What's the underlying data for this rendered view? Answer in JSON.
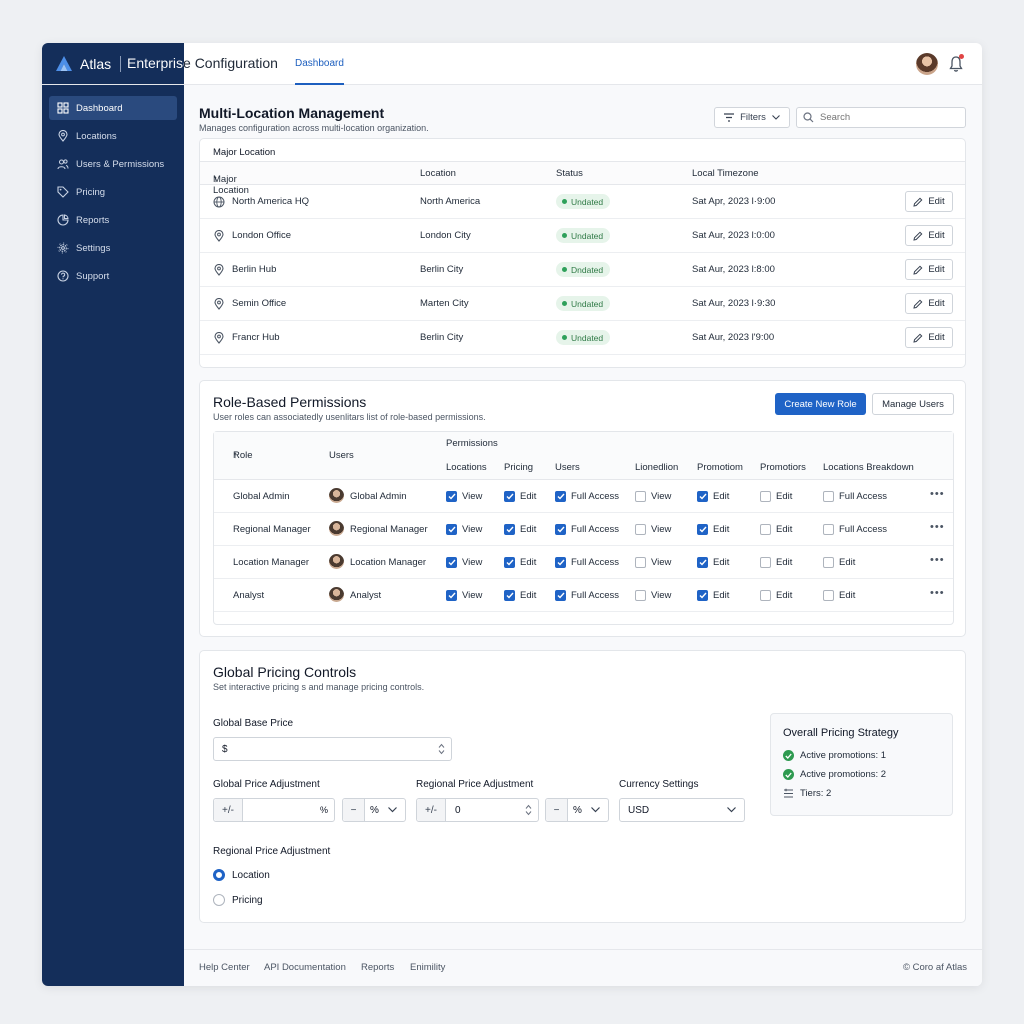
{
  "app": {
    "brand": "Atlas",
    "title": "Enterprise Configuration",
    "top_tab": "Dashboard"
  },
  "sidebar": {
    "items": [
      {
        "label": "Dashboard",
        "icon": "grid-icon",
        "active": true
      },
      {
        "label": "Locations",
        "icon": "map-pin-icon"
      },
      {
        "label": "Users & Permissions",
        "icon": "users-icon"
      },
      {
        "label": "Pricing",
        "icon": "tag-icon"
      },
      {
        "label": "Reports",
        "icon": "report-icon"
      },
      {
        "label": "Settings",
        "icon": "gear-icon"
      },
      {
        "label": "Support",
        "icon": "help-icon"
      }
    ]
  },
  "locations": {
    "title": "Multi-Location Management",
    "subtitle": "Manages configuration across multi-location organization.",
    "filters_label": "Filters",
    "search_placeholder": "Search",
    "group_label": "Major Location",
    "columns": [
      "Major Location",
      "Location",
      "Status",
      "Local Timezone"
    ],
    "rows": [
      {
        "name": "North America HQ",
        "location": "North America",
        "status": "Undated",
        "timezone": "Sat Apr, 2023 l·9:00",
        "icon": "globe-icon"
      },
      {
        "name": "London Office",
        "location": "London City",
        "status": "Undated",
        "timezone": "Sat Aur, 2023 l:0:00",
        "icon": "map-pin-icon"
      },
      {
        "name": "Berlin Hub",
        "location": "Berlin City",
        "status": "Dndated",
        "timezone": "Sat Aur, 2023 l:8:00",
        "icon": "map-pin-icon"
      },
      {
        "name": "Semin Office",
        "location": "Marten City",
        "status": "Undated",
        "timezone": "Sat Aur, 2023 l·9:30",
        "icon": "map-pin-icon"
      },
      {
        "name": "Francr Hub",
        "location": "Berlin City",
        "status": "Undated",
        "timezone": "Sat Aur, 2023 l'9:00",
        "icon": "map-pin-icon"
      }
    ],
    "edit_label": "Edit"
  },
  "roles": {
    "title": "Role-Based Permissions",
    "subtitle": "User roles can associatedly usenlitars list of role-based permissions.",
    "create_label": "Create New Role",
    "manage_label": "Manage Users",
    "col_role": "Role",
    "col_users": "Users",
    "permissions_group": "Permissions",
    "perm_columns": [
      "Locations",
      "Pricing",
      "Users",
      "Lionedlion",
      "Promotiom",
      "Promotiors",
      "Locations Breakdown"
    ],
    "rows": [
      {
        "role": "Global Admin",
        "user": "Global Admin",
        "perms": [
          {
            "label": "View",
            "on": true
          },
          {
            "label": "Edit",
            "on": true
          },
          {
            "label": "Full Access",
            "on": true
          },
          {
            "label": "View",
            "on": false
          },
          {
            "label": "Edit",
            "on": true
          },
          {
            "label": "Edit",
            "on": false
          },
          {
            "label": "Full Access",
            "on": false
          }
        ]
      },
      {
        "role": "Regional Manager",
        "user": "Regional Manager",
        "perms": [
          {
            "label": "View",
            "on": true
          },
          {
            "label": "Edit",
            "on": true
          },
          {
            "label": "Full Access",
            "on": true
          },
          {
            "label": "View",
            "on": false
          },
          {
            "label": "Edit",
            "on": true
          },
          {
            "label": "Edit",
            "on": false
          },
          {
            "label": "Full Access",
            "on": false
          }
        ]
      },
      {
        "role": "Location Manager",
        "user": "Location Manager",
        "perms": [
          {
            "label": "View",
            "on": true
          },
          {
            "label": "Edit",
            "on": true
          },
          {
            "label": "Full Access",
            "on": true
          },
          {
            "label": "View",
            "on": false
          },
          {
            "label": "Edit",
            "on": true
          },
          {
            "label": "Edit",
            "on": false
          },
          {
            "label": "Edit",
            "on": false
          }
        ]
      },
      {
        "role": "Analyst",
        "user": "Analyst",
        "perms": [
          {
            "label": "View",
            "on": true
          },
          {
            "label": "Edit",
            "on": true
          },
          {
            "label": "Full Access",
            "on": true
          },
          {
            "label": "View",
            "on": false
          },
          {
            "label": "Edit",
            "on": true
          },
          {
            "label": "Edit",
            "on": false
          },
          {
            "label": "Edit",
            "on": false
          }
        ]
      }
    ]
  },
  "pricing": {
    "title": "Global Pricing Controls",
    "subtitle": "Set interactive pricing s and  manage pricing controls.",
    "base_price_label": "Global Base Price",
    "base_price_prefix": "$",
    "global_adj_label": "Global Price Adjustment",
    "global_adj_prefix": "+/-",
    "global_adj_value": "",
    "global_adj_suffix": "%",
    "global_unit_prefix": "−",
    "global_unit_value": "%",
    "regional_adj_label": "Regional Price Adjustment",
    "regional_adj_prefix": "+/-",
    "regional_adj_value": "0",
    "regional_unit_prefix": "−",
    "regional_unit_value": "%",
    "currency_label": "Currency Settings",
    "currency_value": "USD",
    "regional_group_label": "Regional Price Adjustment",
    "radio_options": [
      {
        "label": "Location",
        "selected": true
      },
      {
        "label": "Pricing",
        "selected": false
      }
    ],
    "strategy": {
      "title": "Overall Pricing Strategy",
      "items": [
        {
          "label": "Active promotions: 1",
          "icon": "check-circle-icon"
        },
        {
          "label": "Active promotions: 2",
          "icon": "check-circle-icon"
        },
        {
          "label": "Tiers: 2",
          "icon": "tiers-icon"
        }
      ]
    }
  },
  "footer": {
    "links": [
      "Help Center",
      "API Documentation",
      "Reports",
      "Enimility"
    ],
    "copyright": "© Coro af Atlas"
  },
  "colors": {
    "sidebar": "#142e5a",
    "primary": "#1f63c6",
    "success": "#2ea05a"
  }
}
